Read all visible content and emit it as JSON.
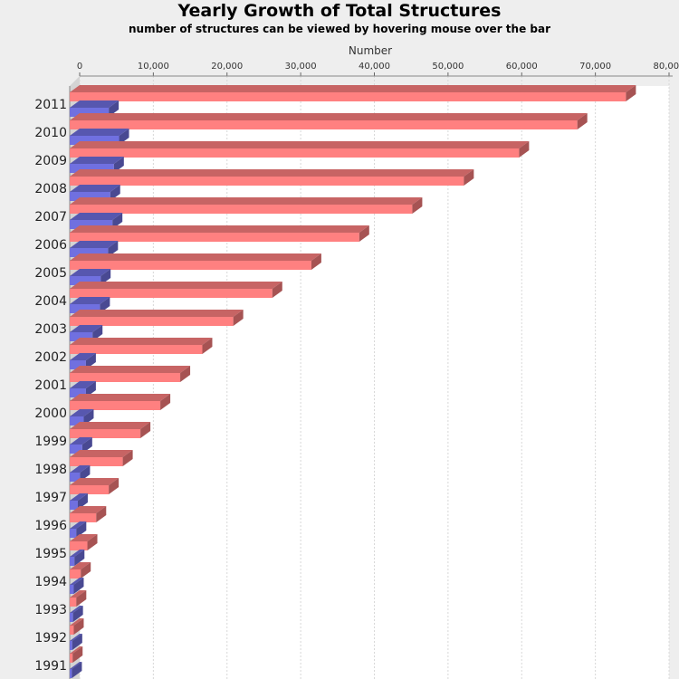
{
  "chart_data": {
    "type": "bar",
    "orientation": "horizontal",
    "style": "3d",
    "title": "Yearly Growth of Total Structures",
    "subtitle": "number of structures can be viewed by hovering mouse over the bar",
    "xlabel": "Number",
    "ylabel": "",
    "xlim": [
      0,
      80000
    ],
    "x_ticks": [
      0,
      10000,
      20000,
      30000,
      40000,
      50000,
      60000,
      70000,
      80000
    ],
    "x_tick_labels": [
      "0",
      "10,000",
      "20,000",
      "30,000",
      "40,000",
      "50,000",
      "60,000",
      "70,000",
      "80,000"
    ],
    "axis_position": "top",
    "grid": true,
    "legend": "none",
    "categories": [
      "2011",
      "2010",
      "2009",
      "2008",
      "2007",
      "2006",
      "2005",
      "2004",
      "2003",
      "2002",
      "2001",
      "2000",
      "1999",
      "1998",
      "1997",
      "1996",
      "1995",
      "1994",
      "1993",
      "1992",
      "1991"
    ],
    "series": [
      {
        "color": "#ff8080",
        "values": [
          75500,
          68900,
          61000,
          53500,
          46500,
          39300,
          32800,
          27500,
          22200,
          18000,
          15000,
          12300,
          9600,
          7200,
          5300,
          3600,
          2400,
          1500,
          900,
          550,
          400
        ]
      },
      {
        "color": "#7070e0",
        "values": [
          5300,
          6700,
          6000,
          5500,
          5800,
          5200,
          4200,
          4100,
          3100,
          2200,
          2200,
          1900,
          1700,
          1400,
          1100,
          900,
          650,
          550,
          450,
          350,
          300
        ]
      }
    ]
  }
}
